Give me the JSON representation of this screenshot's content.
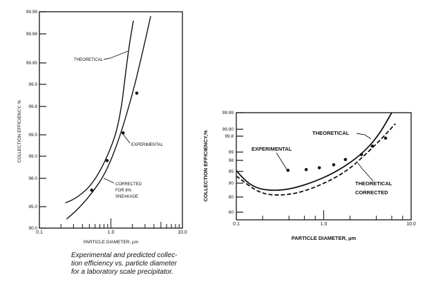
{
  "caption": [
    "Experimental and predicted  collec-",
    "tion efficiency vs. particle diameter",
    "for a laboratory scale precipitator."
  ],
  "chart_data": [
    {
      "type": "line",
      "xlabel": "PARTICLE DIAMETER, µm",
      "ylabel": "COLLECTION EFFICIENCY, %",
      "xscale": "log",
      "yscale": "probability",
      "xlim": [
        0.1,
        10.0
      ],
      "ylim": [
        90.0,
        99.99
      ],
      "xticks": [
        "0.1",
        "1.0",
        "10.0"
      ],
      "xtick_values": [
        0.1,
        1.0,
        10.0
      ],
      "yticks": [
        "90.0",
        "95.0",
        "98.0",
        "99.0",
        "99.5",
        "99.8",
        "99.9",
        "99.95",
        "99.98",
        "99.99"
      ],
      "ytick_values": [
        90.0,
        95.0,
        98.0,
        99.0,
        99.5,
        99.8,
        99.9,
        99.95,
        99.98,
        99.99
      ],
      "grid": false,
      "series": [
        {
          "name": "THEORETICAL",
          "style": "solid",
          "points": [
            [
              0.23,
              95.4
            ],
            [
              0.33,
              95.9
            ],
            [
              0.54,
              97.3
            ],
            [
              0.85,
              98.8
            ],
            [
              1.32,
              99.61
            ],
            [
              1.73,
              99.96
            ],
            [
              2.06,
              99.986
            ]
          ]
        },
        {
          "name": "CORRECTED FOR 8% SNEAKAGE",
          "style": "solid",
          "points": [
            [
              0.24,
              92.1
            ],
            [
              0.35,
              94.5
            ],
            [
              0.54,
              96.4
            ],
            [
              0.85,
              98.25
            ],
            [
              1.32,
              99.42
            ],
            [
              2.06,
              99.87
            ],
            [
              2.81,
              99.963
            ],
            [
              3.6,
              99.988
            ]
          ]
        },
        {
          "name": "EXPERIMENTAL",
          "style": "points",
          "points": [
            [
              0.54,
              96.75
            ],
            [
              0.885,
              98.8
            ],
            [
              1.48,
              99.52
            ],
            [
              2.3,
              99.86
            ]
          ]
        }
      ],
      "annotations": [
        "THEORETICAL",
        "EXPERIMENTAL",
        "CORRECTED",
        "FOR 8%",
        "SNEAKAGE"
      ]
    },
    {
      "type": "line",
      "xlabel": "PARTICLE DIAMETER, µm",
      "ylabel": "COLLECTION EFFICIENCY,%",
      "xscale": "log",
      "yscale": "probability",
      "xlim": [
        0.1,
        10.0
      ],
      "ylim": [
        50,
        99.99
      ],
      "xticks": [
        "0.1",
        "1.0",
        "10.0"
      ],
      "xtick_values": [
        0.1,
        1.0,
        10.0
      ],
      "yticks": [
        "60",
        "80",
        "90",
        "95",
        "98",
        "99",
        "99.8",
        "99.90",
        "99.99"
      ],
      "ytick_values": [
        60,
        80,
        90,
        95,
        98,
        99,
        99.8,
        99.9,
        99.99
      ],
      "grid": false,
      "series": [
        {
          "name": "THEORETICAL",
          "style": "solid",
          "points": [
            [
              0.1,
              95.2
            ],
            [
              0.131,
              90.5
            ],
            [
              0.176,
              86
            ],
            [
              0.272,
              84.5
            ],
            [
              0.44,
              86
            ],
            [
              0.81,
              90.8
            ],
            [
              1.47,
              95.2
            ],
            [
              2.7,
              98.7
            ],
            [
              4.2,
              99.8
            ],
            [
              6.0,
              99.99
            ]
          ]
        },
        {
          "name": "THEORETICAL CORRECTED",
          "style": "dashed",
          "points": [
            [
              0.1,
              93
            ],
            [
              0.176,
              83.5
            ],
            [
              0.272,
              81
            ],
            [
              0.5,
              82.5
            ],
            [
              1.0,
              89.5
            ],
            [
              1.87,
              95.2
            ],
            [
              3.0,
              98.7
            ],
            [
              4.66,
              99.7
            ],
            [
              6.6,
              99.93
            ]
          ]
        },
        {
          "name": "EXPERIMENTAL",
          "style": "points",
          "points": [
            [
              0.39,
              95.3
            ],
            [
              0.63,
              95.5
            ],
            [
              0.89,
              96
            ],
            [
              1.3,
              96.8
            ],
            [
              1.77,
              98.1
            ],
            [
              2.7,
              98.7
            ],
            [
              3.6,
              99.3
            ],
            [
              5.1,
              99.7
            ]
          ]
        }
      ],
      "annotations": [
        "THEORETICAL",
        "EXPERIMENTAL",
        "THEORETICAL",
        "CORRECTED"
      ]
    }
  ]
}
